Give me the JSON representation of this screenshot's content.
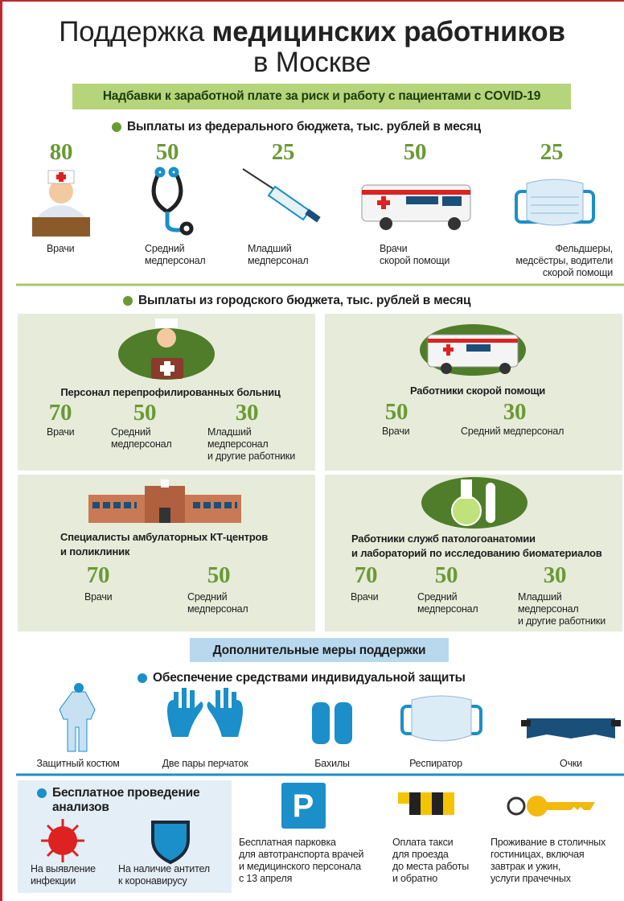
{
  "header": {
    "title_regular": "Поддержка",
    "title_bold": "медицинских работников",
    "title_line2": "в Москве"
  },
  "banner": "Надбавки к заработной плате за риск и работу с пациентами с  COVID-19",
  "federal": {
    "heading": "Выплаты из федерального бюджета, тыс. рублей в месяц",
    "items": [
      {
        "value": 80,
        "label": [
          "Врачи"
        ]
      },
      {
        "value": 50,
        "label": [
          "Средний",
          "медперсонал"
        ]
      },
      {
        "value": 25,
        "label": [
          "Младший",
          "медперсонал"
        ]
      },
      {
        "value": 50,
        "label": [
          "Врачи",
          "скорой помощи"
        ]
      },
      {
        "value": 25,
        "label": [
          "Фельдшеры,",
          "медсёстры, водители",
          "скорой помощи"
        ]
      }
    ]
  },
  "city": {
    "heading": "Выплаты из городского бюджета, тыс. рублей в месяц",
    "panels": [
      {
        "title": [
          "Персонал перепрофилированных больниц"
        ],
        "items": [
          {
            "value": 70,
            "label": [
              "Врачи"
            ]
          },
          {
            "value": 50,
            "label": [
              "Средний",
              "медперсонал"
            ]
          },
          {
            "value": 30,
            "label": [
              "Младший",
              "медперсонал",
              "и другие работники"
            ]
          }
        ]
      },
      {
        "title": [
          "Работники скорой помощи"
        ],
        "items": [
          {
            "value": 50,
            "label": [
              "Врачи"
            ]
          },
          {
            "value": 30,
            "label": [
              "Средний медперсонал"
            ]
          }
        ]
      },
      {
        "title": [
          "Специалисты амбулаторных КТ-центров",
          "и поликлиник"
        ],
        "items": [
          {
            "value": 70,
            "label": [
              "Врачи"
            ]
          },
          {
            "value": 50,
            "label": [
              "Средний",
              "медперсонал"
            ]
          }
        ]
      },
      {
        "title": [
          "Работники служб патологоанатомии",
          "и лабораторий по исследованию биоматериалов"
        ],
        "items": [
          {
            "value": 70,
            "label": [
              "Врачи"
            ]
          },
          {
            "value": 50,
            "label": [
              "Средний",
              "медперсонал"
            ]
          },
          {
            "value": 30,
            "label": [
              "Младший",
              "медперсонал",
              "и другие работники"
            ]
          }
        ]
      }
    ]
  },
  "additional": {
    "banner": "Дополнительные меры поддержки",
    "ppe_heading": "Обеспечение средствами индивидуальной защиты",
    "ppe_items": [
      "Защитный костюм",
      "Две пары перчаток",
      "Бахилы",
      "Респиратор",
      "Очки"
    ],
    "tests": {
      "heading": [
        "Бесплатное проведение",
        "анализов"
      ],
      "items": [
        [
          "На выявление",
          "инфекции"
        ],
        [
          "На наличие антител",
          "к коронавирусу"
        ]
      ]
    },
    "other": [
      [
        "Бесплатная парковка",
        "для автотранспорта врачей",
        "и медицинского персонала",
        "с 13 апреля"
      ],
      [
        "Оплата такси",
        "для проезда",
        "до места работы",
        "и обратно"
      ],
      [
        "Проживание в столичных",
        "гостиницах, включая",
        "завтрак и ужин,",
        "услуги прачечных"
      ]
    ]
  }
}
